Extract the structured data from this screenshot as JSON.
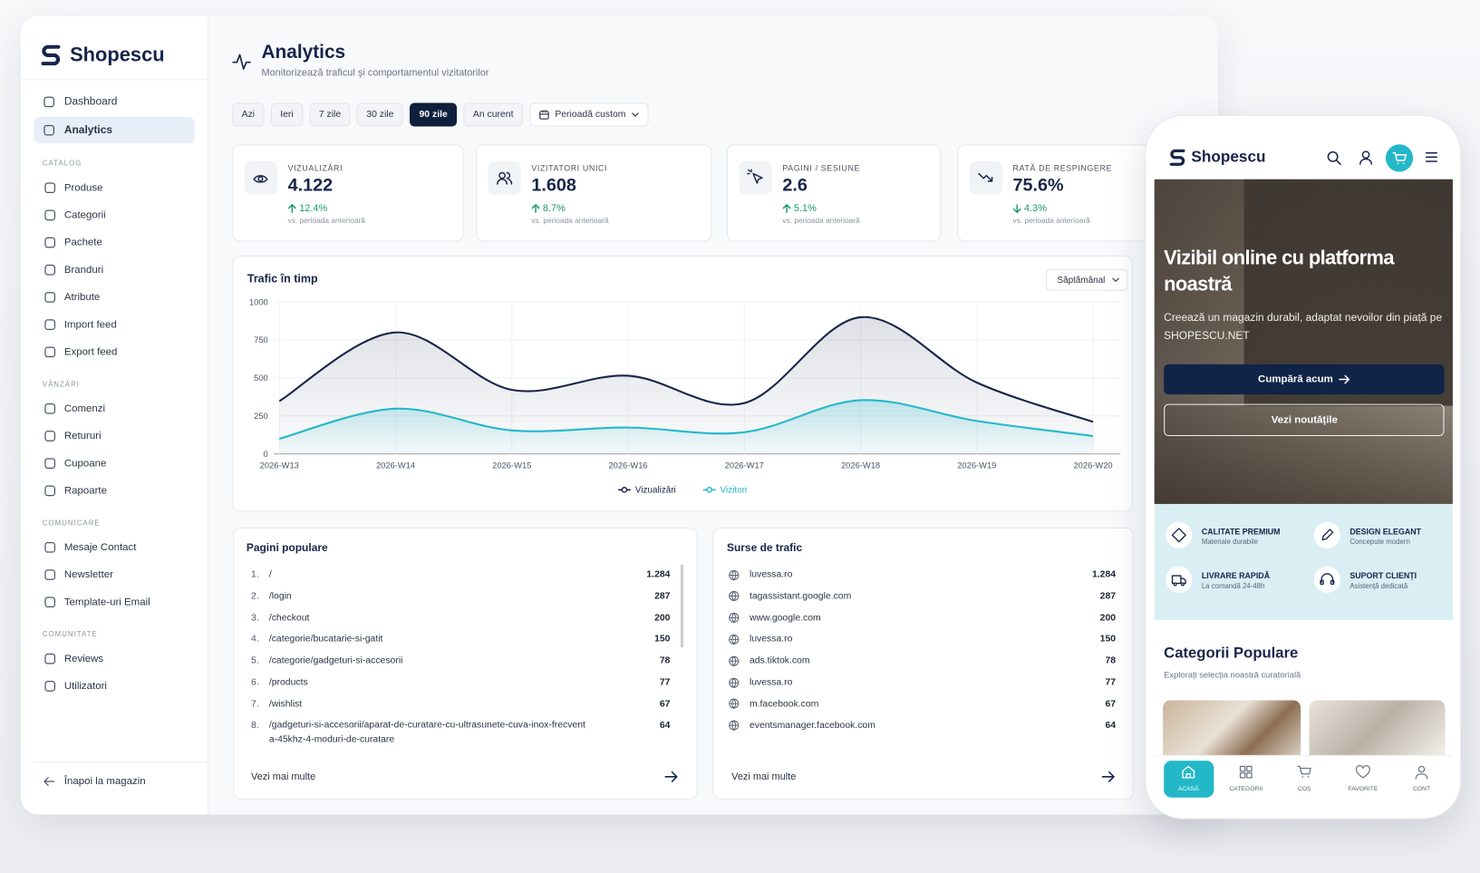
{
  "sidebar": {
    "brand": "Shopescu",
    "nav": [
      {
        "label": "Dashboard"
      },
      {
        "label": "Analytics",
        "selected": true
      }
    ],
    "groups": [
      {
        "title": "CATALOG",
        "items": [
          "Produse",
          "Categorii",
          "Pachete",
          "Branduri",
          "Atribute",
          "Import feed",
          "Export feed"
        ]
      },
      {
        "title": "VÂNZĂRI",
        "items": [
          "Comenzi",
          "Retururi",
          "Cupoane",
          "Rapoarte"
        ]
      },
      {
        "title": "COMUNICARE",
        "items": [
          "Mesaje Contact",
          "Newsletter",
          "Template-uri Email"
        ]
      },
      {
        "title": "COMUNITATE",
        "items": [
          "Reviews",
          "Utilizatori"
        ]
      }
    ],
    "back": "Înapoi la magazin"
  },
  "header": {
    "title": "Analytics",
    "subtitle": "Monitorizează traficul și comportamentul vizitatorilor"
  },
  "filters": {
    "options": [
      {
        "label": "Azi"
      },
      {
        "label": "Ieri"
      },
      {
        "label": "7 zile"
      },
      {
        "label": "30 zile"
      },
      {
        "label": "90 zile",
        "selected": true
      },
      {
        "label": "An curent"
      }
    ],
    "custom": "Perioadă custom"
  },
  "kpis": [
    {
      "label": "VIZUALIZĂRI",
      "value": "4.122",
      "change": "12.4%",
      "direction": "up",
      "note": "vs. perioada anterioară"
    },
    {
      "label": "VIZITATORI UNICI",
      "value": "1.608",
      "change": "8.7%",
      "direction": "up",
      "note": "vs. perioada anterioară"
    },
    {
      "label": "PAGINI / SESIUNE",
      "value": "2.6",
      "change": "5.1%",
      "direction": "up",
      "note": "vs. perioada anterioară"
    },
    {
      "label": "RATĂ DE RESPINGERE",
      "value": "75.6%",
      "change": "4.3%",
      "direction": "down",
      "note": "vs. perioada anterioară"
    }
  ],
  "chart_data": {
    "type": "line",
    "title": "Trafic în timp",
    "granularity": "Săptămânal",
    "categories": [
      "2026-W13",
      "2026-W14",
      "2026-W15",
      "2026-W16",
      "2026-W17",
      "2026-W18",
      "2026-W19",
      "2026-W20"
    ],
    "series": [
      {
        "name": "Vizualizări",
        "color": "#17254a",
        "values": [
          348,
          800,
          422,
          515,
          335,
          900,
          470,
          211
        ]
      },
      {
        "name": "Vizitori",
        "color": "#22b8c8",
        "values": [
          100,
          298,
          155,
          174,
          143,
          354,
          217,
          118
        ]
      }
    ],
    "ylim": [
      0,
      1000
    ],
    "yticks": [
      0,
      250,
      500,
      750,
      1000
    ],
    "grid": true
  },
  "popular_pages": {
    "title": "Pagini populare",
    "rows": [
      {
        "rank": "1.",
        "path": "/",
        "count": "1.284"
      },
      {
        "rank": "2.",
        "path": "/login",
        "count": "287"
      },
      {
        "rank": "3.",
        "path": "/checkout",
        "count": "200"
      },
      {
        "rank": "4.",
        "path": "/categorie/bucatarie-si-gatit",
        "count": "150"
      },
      {
        "rank": "5.",
        "path": "/categorie/gadgeturi-si-accesorii",
        "count": "78"
      },
      {
        "rank": "6.",
        "path": "/products",
        "count": "77"
      },
      {
        "rank": "7.",
        "path": "/wishlist",
        "count": "67"
      },
      {
        "rank": "8.",
        "path": "/gadgeturi-si-accesorii/aparat-de-curatare-cu-ultrasunete-cuva-inox-frecventa-45khz-4-moduri-de-curatare",
        "count": "64"
      }
    ],
    "more": "Vezi mai multe"
  },
  "traffic_sources": {
    "title": "Surse de trafic",
    "rows": [
      {
        "source": "luvessa.ro",
        "count": "1.284"
      },
      {
        "source": "tagassistant.google.com",
        "count": "287"
      },
      {
        "source": "www.google.com",
        "count": "200"
      },
      {
        "source": "luvessa.ro",
        "count": "150"
      },
      {
        "source": "ads.tiktok.com",
        "count": "78"
      },
      {
        "source": "luvessa.ro",
        "count": "77"
      },
      {
        "source": "m.facebook.com",
        "count": "67"
      },
      {
        "source": "eventsmanager.facebook.com",
        "count": "64"
      }
    ],
    "more": "Vezi mai multe"
  },
  "mobile": {
    "brand": "Shopescu",
    "hero": {
      "title": "Vizibil online cu platforma noastră",
      "text": "Creează un magazin durabil, adaptat nevoilor din piață pe SHOPESCU.NET",
      "primary": "Cumpără acum",
      "secondary": "Vezi noutățile"
    },
    "features": [
      {
        "title": "CALITATE PREMIUM",
        "text": "Materiale durabile"
      },
      {
        "title": "DESIGN ELEGANT",
        "text": "Concepute modern"
      },
      {
        "title": "LIVRARE RAPIDĂ",
        "text": "La comandă 24-48h"
      },
      {
        "title": "SUPORT CLIENȚI",
        "text": "Asistență dedicată"
      }
    ],
    "categories": {
      "title": "Categorii Populare",
      "subtitle": "Explorați selecția noastră curatorială"
    },
    "tabs": [
      {
        "label": "ACASĂ",
        "selected": true
      },
      {
        "label": "CATEGORII"
      },
      {
        "label": "COȘ"
      },
      {
        "label": "FAVORITE"
      },
      {
        "label": "CONT"
      }
    ]
  }
}
